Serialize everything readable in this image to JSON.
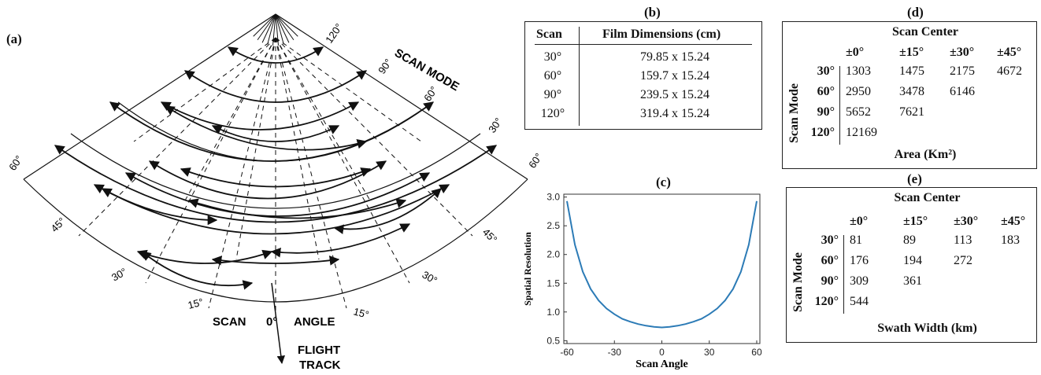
{
  "panel_a": {
    "label": "(a)",
    "scan_mode_label": "SCAN MODE",
    "scan_angle_label_left": "SCAN",
    "scan_angle_label_zero": "0°",
    "scan_angle_label_right": "ANGLE",
    "flight_track_label": [
      "FLIGHT",
      "TRACK"
    ],
    "mode_labels": [
      "120°",
      "90°",
      "60°",
      "30°",
      "60°",
      "60°"
    ],
    "angle_labels": [
      "15°",
      "30°",
      "45°",
      "15°",
      "30°",
      "45°"
    ]
  },
  "panel_b": {
    "label": "(b)",
    "headers": [
      "Scan",
      "Film Dimensions (cm)"
    ],
    "rows": [
      [
        "30°",
        "79.85 x 15.24"
      ],
      [
        "60°",
        "159.7 x 15.24"
      ],
      [
        "90°",
        "239.5 x 15.24"
      ],
      [
        "120°",
        "319.4 x 15.24"
      ]
    ]
  },
  "panel_d": {
    "label": "(d)",
    "title": "Scan Center",
    "columns": [
      "±0°",
      "±15°",
      "±30°",
      "±45°"
    ],
    "row_title": "Scan Mode",
    "rows": [
      {
        "mode": "30°",
        "values": [
          "1303",
          "1475",
          "2175",
          "4672"
        ]
      },
      {
        "mode": "60°",
        "values": [
          "2950",
          "3478",
          "6146",
          ""
        ]
      },
      {
        "mode": "90°",
        "values": [
          "5652",
          "7621",
          "",
          ""
        ]
      },
      {
        "mode": "120°",
        "values": [
          "12169",
          "",
          "",
          ""
        ]
      }
    ],
    "footer": "Area (Km²)"
  },
  "panel_e": {
    "label": "(e)",
    "title": "Scan Center",
    "columns": [
      "±0°",
      "±15°",
      "±30°",
      "±45°"
    ],
    "row_title": "Scan Mode",
    "rows": [
      {
        "mode": "30°",
        "values": [
          "81",
          "89",
          "113",
          "183"
        ]
      },
      {
        "mode": "60°",
        "values": [
          "176",
          "194",
          "272",
          ""
        ]
      },
      {
        "mode": "90°",
        "values": [
          "309",
          "361",
          "",
          ""
        ]
      },
      {
        "mode": "120°",
        "values": [
          "544",
          "",
          "",
          ""
        ]
      }
    ],
    "footer": "Swath Width (km)"
  },
  "panel_c": {
    "label": "(c)",
    "chart_data": {
      "type": "line",
      "xlabel": "Scan Angle",
      "ylabel": "Spatial Resolution",
      "xlim": [
        -62,
        62
      ],
      "ylim": [
        0.45,
        3.05
      ],
      "xticks": [
        -60,
        -30,
        0,
        30,
        60
      ],
      "yticks": [
        0.5,
        1.0,
        1.5,
        2.0,
        2.5,
        3.0
      ],
      "ytick_labels": [
        "0.5",
        "1.0",
        "1.5",
        "2.0",
        "2.5",
        "3.0"
      ],
      "color": "#2c7bb6",
      "series": [
        {
          "x": [
            -60,
            -55,
            -50,
            -45,
            -40,
            -35,
            -30,
            -25,
            -20,
            -15,
            -10,
            -5,
            0,
            5,
            10,
            15,
            20,
            25,
            30,
            35,
            40,
            45,
            50,
            55,
            60
          ],
          "y": [
            2.93,
            2.17,
            1.7,
            1.4,
            1.2,
            1.06,
            0.96,
            0.88,
            0.83,
            0.79,
            0.76,
            0.74,
            0.73,
            0.74,
            0.76,
            0.79,
            0.83,
            0.88,
            0.96,
            1.06,
            1.2,
            1.4,
            1.7,
            2.17,
            2.93
          ]
        }
      ]
    }
  }
}
